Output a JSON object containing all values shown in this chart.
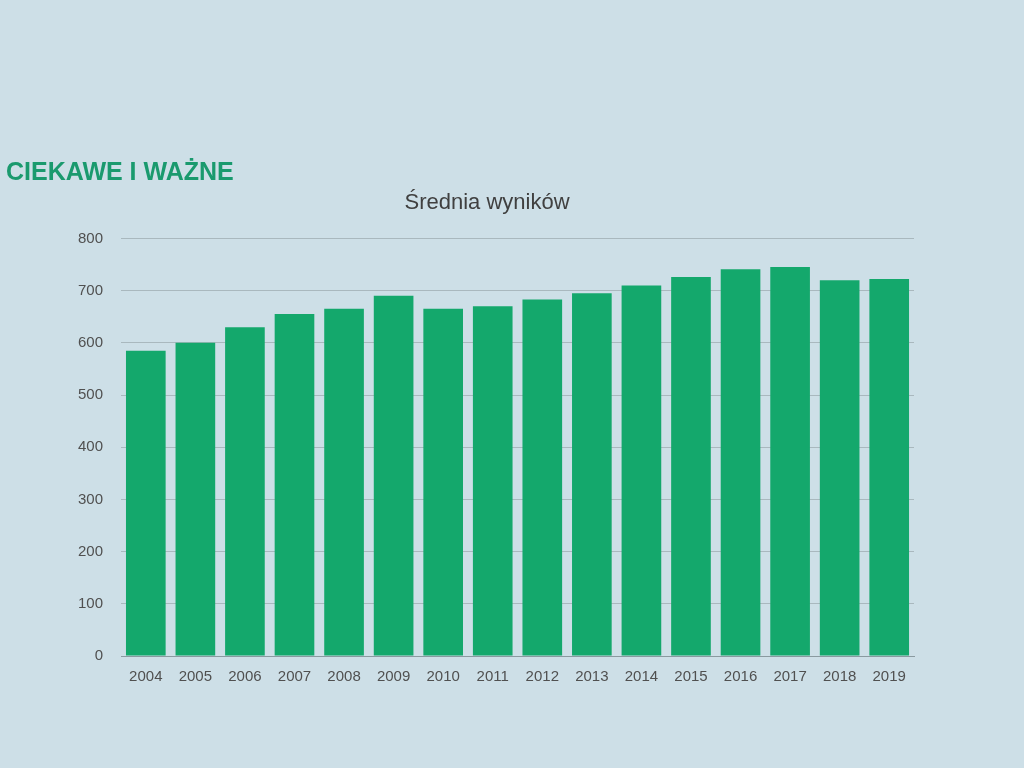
{
  "chart_data": {
    "type": "bar",
    "title": "Średnia wyników",
    "annotations": [
      "CIEKAWE I WAŻNE"
    ],
    "categories": [
      "2004",
      "2005",
      "2006",
      "2007",
      "2008",
      "2009",
      "2010",
      "2011",
      "2012",
      "2013",
      "2014",
      "2015",
      "2016",
      "2017",
      "2018",
      "2019"
    ],
    "values": [
      585,
      600,
      630,
      655,
      665,
      690,
      665,
      670,
      683,
      695,
      710,
      726,
      741,
      745,
      720,
      722
    ],
    "color": "#14a86c",
    "ylim": [
      0,
      800
    ],
    "yticks": [
      0,
      100,
      200,
      300,
      400,
      500,
      600,
      700,
      800
    ],
    "grid": "y",
    "legend": false
  }
}
